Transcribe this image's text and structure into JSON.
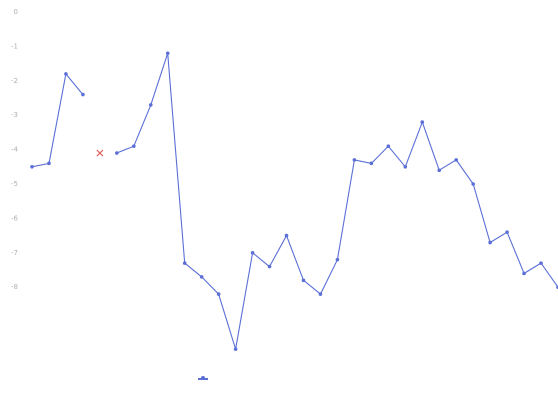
{
  "chart_data": {
    "type": "line",
    "title": "",
    "xlabel": "",
    "ylabel": "",
    "ylim": [
      -9,
      0
    ],
    "yticks": [
      "-8",
      "-7",
      "-6",
      "-5",
      "-4",
      "-3",
      "-2",
      "-1",
      "0"
    ],
    "xtick_labels": [],
    "grid": false,
    "legend": "bottom-center",
    "series": [
      {
        "name": "",
        "color": "#5b6fd6",
        "values": [
          -4.5,
          -4.4,
          -1.8,
          -2.4,
          null,
          -4.1,
          -3.9,
          -2.7,
          -1.2,
          -7.3,
          -7.7,
          -8.2,
          -9.8,
          -7.0,
          -7.4,
          -6.5,
          -7.8,
          -8.2,
          -7.2,
          -4.3,
          -4.4,
          -3.9,
          -4.5,
          -3.2,
          -4.6,
          -4.3,
          -5.0,
          -6.7,
          -6.4,
          -7.6,
          -7.3,
          -8.0
        ]
      }
    ],
    "highlight_point": {
      "index": 4,
      "value": -4.1,
      "color": "#e06060",
      "marker": "x"
    }
  },
  "legend_text": "",
  "colors": {
    "line": "#5b6fd6",
    "highlight": "#e06060",
    "axis_text": "#b0b0b0"
  }
}
